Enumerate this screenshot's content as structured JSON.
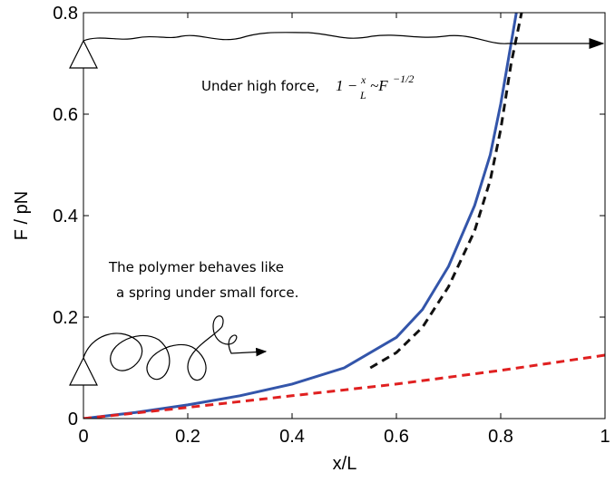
{
  "chart_data": {
    "type": "line",
    "xlabel": "x/L",
    "ylabel": "F / pN",
    "xlim": [
      0,
      1
    ],
    "ylim": [
      0,
      0.8
    ],
    "xticks": [
      0,
      0.2,
      0.4,
      0.6,
      0.8,
      1
    ],
    "yticks": [
      0,
      0.2,
      0.4,
      0.6,
      0.8
    ],
    "annotations": {
      "high_force": {
        "text": "Under high force,",
        "lead": "1 −",
        "num": "x",
        "den": "L",
        "rel": "~F",
        "exp": "−1/2"
      },
      "low_force": [
        "The polymer behaves like",
        "a spring under small force."
      ]
    },
    "series": [
      {
        "color": "#3355aa",
        "dash": "none",
        "x": [
          0,
          0.1,
          0.2,
          0.3,
          0.4,
          0.5,
          0.6,
          0.65,
          0.7,
          0.75,
          0.78,
          0.8,
          0.82,
          0.83
        ],
        "values": [
          0,
          0.012,
          0.027,
          0.045,
          0.068,
          0.1,
          0.16,
          0.215,
          0.3,
          0.42,
          0.52,
          0.62,
          0.74,
          0.8
        ]
      },
      {
        "color": "#111111",
        "dash": "9 6",
        "x": [
          0.55,
          0.6,
          0.65,
          0.7,
          0.75,
          0.78,
          0.8,
          0.82,
          0.84
        ],
        "values": [
          0.1,
          0.13,
          0.18,
          0.26,
          0.37,
          0.47,
          0.57,
          0.7,
          0.8
        ]
      },
      {
        "color": "#e02020",
        "dash": "9 6",
        "x": [
          0,
          0.2,
          0.4,
          0.6,
          0.8,
          1
        ],
        "values": [
          0,
          0.022,
          0.045,
          0.068,
          0.095,
          0.125
        ]
      }
    ]
  }
}
